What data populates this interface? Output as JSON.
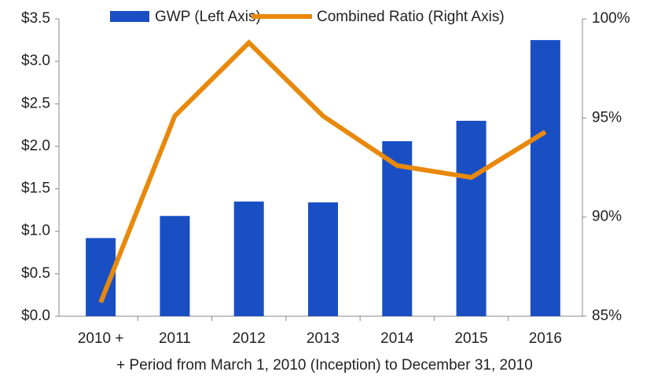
{
  "chart_data": {
    "type": "bar_line",
    "categories": [
      "2010 +",
      "2011",
      "2012",
      "2013",
      "2014",
      "2015",
      "2016"
    ],
    "series": [
      {
        "name": "GWP (Left Axis)",
        "color": "#1a4fc4",
        "type": "bar",
        "values": [
          0.92,
          1.18,
          1.35,
          1.34,
          2.06,
          2.3,
          3.25
        ]
      },
      {
        "name": "Combined Ratio (Right Axis)",
        "color": "#e8890c",
        "type": "line",
        "axis": "y2",
        "values": [
          85.7,
          95.1,
          98.8,
          95.1,
          92.6,
          92.0,
          94.3
        ]
      }
    ],
    "ylim": [
      0,
      3.5
    ],
    "yticks": [
      {
        "value": 0,
        "label": "$0.0"
      },
      {
        "value": 0.5,
        "label": "$0.5"
      },
      {
        "value": 1.0,
        "label": "$1.0"
      },
      {
        "value": 1.5,
        "label": "$1.5"
      },
      {
        "value": 2.0,
        "label": "$2.0"
      },
      {
        "value": 2.5,
        "label": "$2.5"
      },
      {
        "value": 3.0,
        "label": "$3.0"
      },
      {
        "value": 3.5,
        "label": "$3.5"
      }
    ],
    "y2lim": [
      85,
      100
    ],
    "y2ticks": [
      {
        "value": 85,
        "label": "85%"
      },
      {
        "value": 90,
        "label": "90%"
      },
      {
        "value": 95,
        "label": "95%"
      },
      {
        "value": 100,
        "label": "100%"
      }
    ],
    "footnote": "+ Period from March 1, 2010 (Inception) to December 31, 2010",
    "legend": "top"
  }
}
